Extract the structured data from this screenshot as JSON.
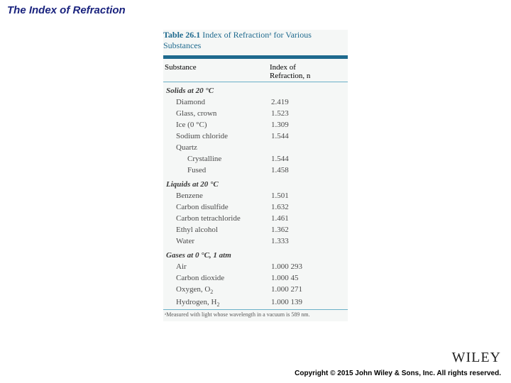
{
  "title": "The Index of Refraction",
  "title_color": "#1a237e",
  "table": {
    "caption_color": "#1e6a8e",
    "rule_color": "#1e6a8e",
    "thin_rule_color": "#6bb0c8",
    "text_color": "#3a3a3a",
    "caption_label": "Table 26.1",
    "caption_rest": "Index of Refractionᵃ for Various Substances",
    "col1": "Substance",
    "col2_line1": "Index of",
    "col2_line2": "Refraction, n",
    "col2_var": "n",
    "sections": [
      {
        "head": "Solids at 20 °C",
        "rows": [
          {
            "sub": "Diamond",
            "val": "2.419"
          },
          {
            "sub": "Glass, crown",
            "val": "1.523"
          },
          {
            "sub": "Ice (0 °C)",
            "val": "1.309"
          },
          {
            "sub": "Sodium chloride",
            "val": "1.544"
          },
          {
            "sub": "Quartz",
            "val": ""
          },
          {
            "subsub": "Crystalline",
            "val": "1.544"
          },
          {
            "subsub": "Fused",
            "val": "1.458"
          }
        ]
      },
      {
        "head": "Liquids at 20 °C",
        "rows": [
          {
            "sub": "Benzene",
            "val": "1.501"
          },
          {
            "sub": "Carbon disulfide",
            "val": "1.632"
          },
          {
            "sub": "Carbon tetrachloride",
            "val": "1.461"
          },
          {
            "sub": "Ethyl alcohol",
            "val": "1.362"
          },
          {
            "sub": "Water",
            "val": "1.333"
          }
        ]
      },
      {
        "head": "Gases at 0 °C, 1 atm",
        "rows": [
          {
            "sub": "Air",
            "val": "1.000 293"
          },
          {
            "sub": "Carbon dioxide",
            "val": "1.000 45"
          },
          {
            "sub_html": "Oxygen, O<span class=\"sub2\">2</span>",
            "val": "1.000 271"
          },
          {
            "sub_html": "Hydrogen, H<span class=\"sub2\">2</span>",
            "val": "1.000 139"
          }
        ]
      }
    ],
    "footnote": "ᵃMeasured with light whose wavelength in a vacuum is 589 nm."
  },
  "logo_text": "WILEY",
  "copyright": "Copyright © 2015 John Wiley & Sons, Inc. All rights reserved."
}
